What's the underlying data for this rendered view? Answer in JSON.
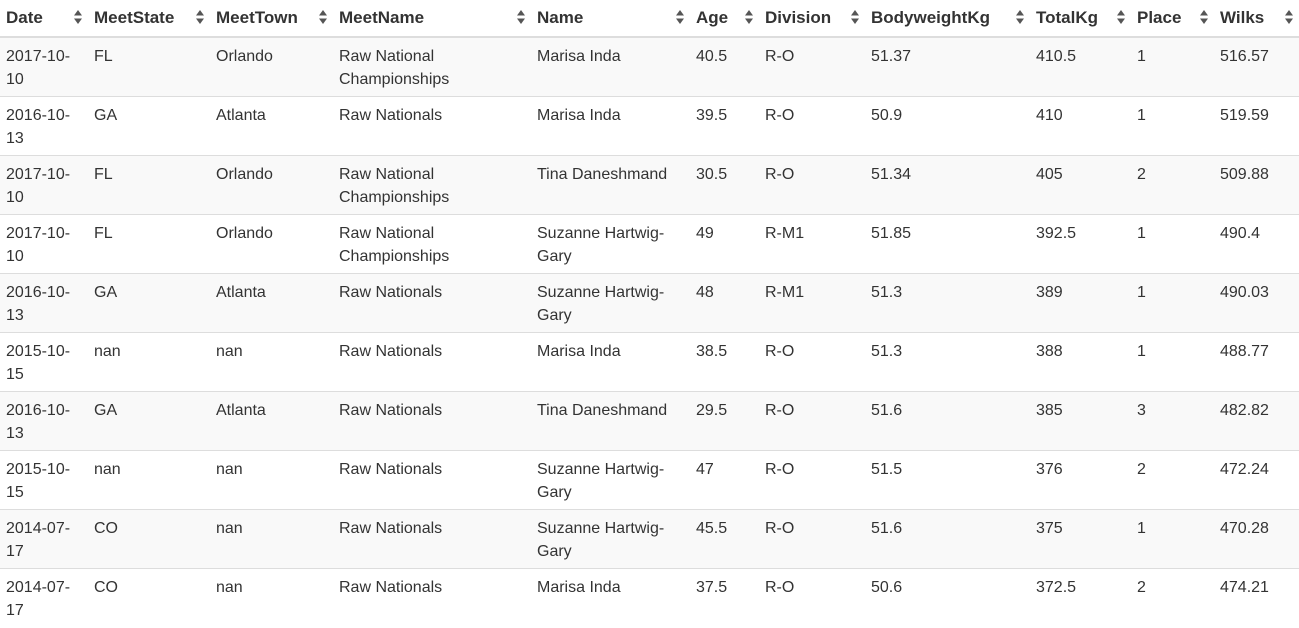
{
  "columns": [
    {
      "label": "Date"
    },
    {
      "label": "MeetState"
    },
    {
      "label": "MeetTown"
    },
    {
      "label": "MeetName"
    },
    {
      "label": "Name"
    },
    {
      "label": "Age"
    },
    {
      "label": "Division"
    },
    {
      "label": "BodyweightKg"
    },
    {
      "label": "TotalKg"
    },
    {
      "label": "Place"
    },
    {
      "label": "Wilks"
    }
  ],
  "sort_icon": "sort-both-icon",
  "rows": [
    [
      "2017-10-10",
      "FL",
      "Orlando",
      "Raw National Championships",
      "Marisa Inda",
      "40.5",
      "R-O",
      "51.37",
      "410.5",
      "1",
      "516.57"
    ],
    [
      "2016-10-13",
      "GA",
      "Atlanta",
      "Raw Nationals",
      "Marisa Inda",
      "39.5",
      "R-O",
      "50.9",
      "410",
      "1",
      "519.59"
    ],
    [
      "2017-10-10",
      "FL",
      "Orlando",
      "Raw National Championships",
      "Tina Daneshmand",
      "30.5",
      "R-O",
      "51.34",
      "405",
      "2",
      "509.88"
    ],
    [
      "2017-10-10",
      "FL",
      "Orlando",
      "Raw National Championships",
      "Suzanne Hartwig-Gary",
      "49",
      "R-M1",
      "51.85",
      "392.5",
      "1",
      "490.4"
    ],
    [
      "2016-10-13",
      "GA",
      "Atlanta",
      "Raw Nationals",
      "Suzanne Hartwig-Gary",
      "48",
      "R-M1",
      "51.3",
      "389",
      "1",
      "490.03"
    ],
    [
      "2015-10-15",
      "nan",
      "nan",
      "Raw Nationals",
      "Marisa Inda",
      "38.5",
      "R-O",
      "51.3",
      "388",
      "1",
      "488.77"
    ],
    [
      "2016-10-13",
      "GA",
      "Atlanta",
      "Raw Nationals",
      "Tina Daneshmand",
      "29.5",
      "R-O",
      "51.6",
      "385",
      "3",
      "482.82"
    ],
    [
      "2015-10-15",
      "nan",
      "nan",
      "Raw Nationals",
      "Suzanne Hartwig-Gary",
      "47",
      "R-O",
      "51.5",
      "376",
      "2",
      "472.24"
    ],
    [
      "2014-07-17",
      "CO",
      "nan",
      "Raw Nationals",
      "Suzanne Hartwig-Gary",
      "45.5",
      "R-O",
      "51.6",
      "375",
      "1",
      "470.28"
    ],
    [
      "2014-07-17",
      "CO",
      "nan",
      "Raw Nationals",
      "Marisa Inda",
      "37.5",
      "R-O",
      "50.6",
      "372.5",
      "2",
      "474.21"
    ]
  ],
  "colors": {
    "row_stripe": "#f9f9f9",
    "border": "#dddddd",
    "text": "#333333",
    "sort_icon": "#555555"
  }
}
